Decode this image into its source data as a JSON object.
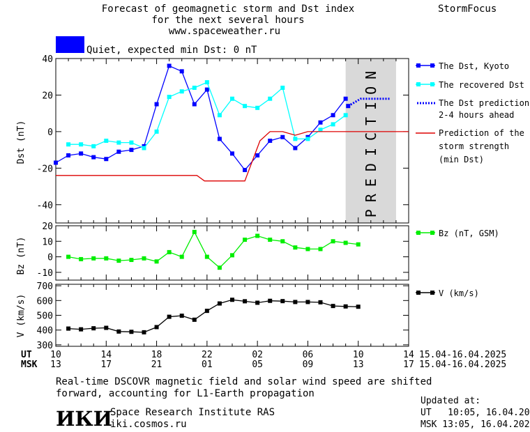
{
  "header": {
    "title_line1": "Forecast of geomagnetic storm and Dst index",
    "title_line2": "for the next several hours",
    "site": "www.spaceweather.ru",
    "brand": "StormFocus"
  },
  "status": {
    "color": "#0000ff",
    "text": "Quiet, expected min Dst: 0 nT"
  },
  "legend": {
    "dst_kyoto": "The Dst, Kyoto",
    "dst_recovered": "The recovered Dst",
    "dst_prediction": [
      "The Dst prediction",
      "2-4 hours ahead"
    ],
    "storm_strength": [
      "Prediction of the",
      "storm strength",
      "(min Dst)"
    ],
    "bz": "Bz (nT, GSM)",
    "v": "V (km/s)"
  },
  "prediction_label": "PREDICTION",
  "time_axis": {
    "ut_label": "UT",
    "msk_label": "MSK",
    "ut_ticks": [
      "10",
      "14",
      "18",
      "22",
      "02",
      "06",
      "10",
      "14"
    ],
    "msk_ticks": [
      "13",
      "17",
      "21",
      "01",
      "05",
      "09",
      "13",
      "17"
    ],
    "ut_range": "15.04-16.04.2025",
    "msk_range": "15.04-16.04.2025"
  },
  "footer": {
    "note_line1": "Real-time DSCOVR magnetic field and solar wind speed are shifted",
    "note_line2": "forward, accounting for L1-Earth propagation",
    "logo": "ИКИ",
    "institute": "Space Research Institute RAS",
    "url": "iki.cosmos.ru",
    "updated_label": "Updated at:",
    "updated_ut": "UT   10:05, 16.04.2025",
    "updated_msk": "MSK 13:05, 16.04.2025"
  },
  "chart_data": [
    {
      "type": "line",
      "ylabel": "Dst (nT)",
      "ylim": [
        -50,
        40
      ],
      "yticks": [
        -40,
        -20,
        0,
        20,
        40
      ],
      "xlim": [
        10,
        38
      ],
      "prediction_region": [
        33,
        37
      ],
      "series": [
        {
          "name": "The Dst, Kyoto",
          "color": "#0000ff",
          "marker": "square",
          "x": [
            10,
            11,
            12,
            13,
            14,
            15,
            16,
            17,
            18,
            19,
            20,
            21,
            22,
            23,
            24,
            25,
            26,
            27,
            28,
            29,
            30,
            31,
            32,
            33
          ],
          "y": [
            -17,
            -13,
            -12,
            -14,
            -15,
            -11,
            -10,
            -8,
            15,
            36,
            33,
            15,
            23,
            -4,
            -12,
            -21,
            -13,
            -5,
            -3,
            -9,
            -3,
            5,
            9,
            18
          ]
        },
        {
          "name": "The Dst, Kyoto (current)",
          "color": "#0000ff",
          "marker": "square",
          "x": [
            33.2
          ],
          "y": [
            14
          ]
        },
        {
          "name": "The recovered Dst",
          "color": "#00ffff",
          "marker": "square",
          "x": [
            11,
            12,
            13,
            14,
            15,
            16,
            17,
            18,
            19,
            20,
            21,
            22,
            23,
            24,
            25,
            26,
            27,
            28,
            29,
            30,
            31,
            32,
            33
          ],
          "y": [
            -7,
            -7,
            -8,
            -5,
            -6,
            -6,
            -9,
            0,
            19,
            22,
            24,
            27,
            9,
            18,
            14,
            13,
            18,
            24,
            -4,
            -4,
            1,
            4,
            9
          ]
        },
        {
          "name": "The Dst prediction 2-4 hours ahead",
          "color": "#0000ff",
          "style": "dotted",
          "x": [
            33.2,
            34.2,
            35,
            36.5
          ],
          "y": [
            14,
            18,
            18,
            18
          ]
        },
        {
          "name": "Prediction of the storm strength (min Dst)",
          "color": "#dd0000",
          "x": [
            10,
            21.2,
            21.8,
            25,
            26.2,
            27,
            28,
            29,
            30,
            38
          ],
          "y": [
            -24,
            -24,
            -27,
            -27,
            -5,
            0,
            0,
            -2,
            0,
            0
          ]
        }
      ]
    },
    {
      "type": "line",
      "ylabel": "Bz (nT)",
      "ylim": [
        -15,
        20
      ],
      "yticks": [
        -10,
        0,
        10,
        20
      ],
      "xlim": [
        10,
        38
      ],
      "series": [
        {
          "name": "Bz (nT, GSM)",
          "color": "#00ee00",
          "marker": "square",
          "x": [
            11,
            12,
            13,
            14,
            15,
            16,
            17,
            18,
            19,
            20,
            21,
            22,
            23,
            24,
            25,
            26,
            27,
            28,
            29,
            30,
            31,
            32,
            33,
            34
          ],
          "y": [
            0,
            -1.5,
            -1,
            -1,
            -2.5,
            -2,
            -1,
            -3,
            3,
            0,
            16,
            0,
            -7,
            1,
            11,
            13.5,
            11,
            10,
            6,
            5,
            5,
            10,
            9,
            8
          ]
        }
      ]
    },
    {
      "type": "line",
      "ylabel": "V (km/s)",
      "ylim": [
        290,
        710
      ],
      "yticks": [
        300,
        400,
        500,
        600,
        700
      ],
      "xlim": [
        10,
        38
      ],
      "series": [
        {
          "name": "V (km/s)",
          "color": "#000000",
          "marker": "square",
          "x": [
            11,
            12,
            13,
            14,
            15,
            16,
            17,
            18,
            19,
            20,
            21,
            22,
            23,
            24,
            25,
            26,
            27,
            28,
            29,
            30,
            31,
            32,
            33,
            34
          ],
          "y": [
            410,
            405,
            412,
            415,
            390,
            388,
            385,
            420,
            490,
            497,
            470,
            530,
            580,
            605,
            595,
            585,
            598,
            596,
            590,
            590,
            588,
            563,
            560,
            558
          ]
        }
      ]
    }
  ]
}
